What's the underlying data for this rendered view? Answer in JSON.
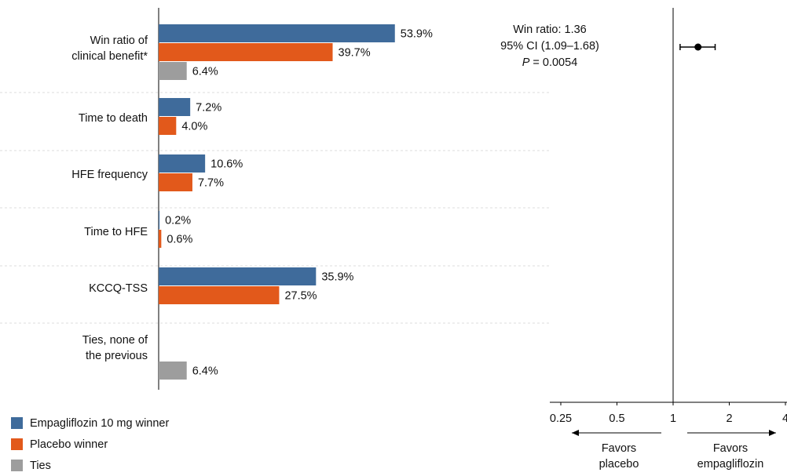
{
  "chart_data": [
    {
      "type": "bar",
      "orientation": "horizontal",
      "categories": [
        "Win ratio of\nclinical benefit*",
        "Time to death",
        "HFE frequency",
        "Time to HFE",
        "KCCQ-TSS",
        "Ties, none of\nthe previous"
      ],
      "series": [
        {
          "name": "Empagliflozin 10 mg winner",
          "color": "#3f6b9b",
          "values": [
            53.9,
            7.2,
            10.6,
            0.2,
            35.9,
            null
          ],
          "value_labels": [
            "53.9%",
            "7.2%",
            "10.6%",
            "0.2%",
            "35.9%",
            null
          ]
        },
        {
          "name": "Placebo winner",
          "color": "#e2591b",
          "values": [
            39.7,
            4.0,
            7.7,
            0.6,
            27.5,
            null
          ],
          "value_labels": [
            "39.7%",
            "4.0%",
            "7.7%",
            "0.6%",
            "27.5%",
            null
          ]
        },
        {
          "name": "Ties",
          "color": "#9d9d9d",
          "values": [
            6.4,
            null,
            null,
            null,
            null,
            6.4
          ],
          "value_labels": [
            "6.4%",
            null,
            null,
            null,
            null,
            "6.4%"
          ]
        }
      ]
    },
    {
      "type": "forest",
      "annotation": [
        "Win ratio: 1.36",
        "95% CI (1.09–1.68)"
      ],
      "p_label": "P",
      "p_value": "= 0.0054",
      "estimate": 1.36,
      "ci": [
        1.09,
        1.68
      ],
      "color": "#000000",
      "xscale": "log",
      "xlim": [
        0.25,
        4
      ],
      "xticks": [
        0.25,
        0.5,
        1,
        2,
        4
      ],
      "reference": 1,
      "direction_labels": [
        "Favors\nplacebo",
        "Favors\nempagliflozin"
      ]
    }
  ]
}
